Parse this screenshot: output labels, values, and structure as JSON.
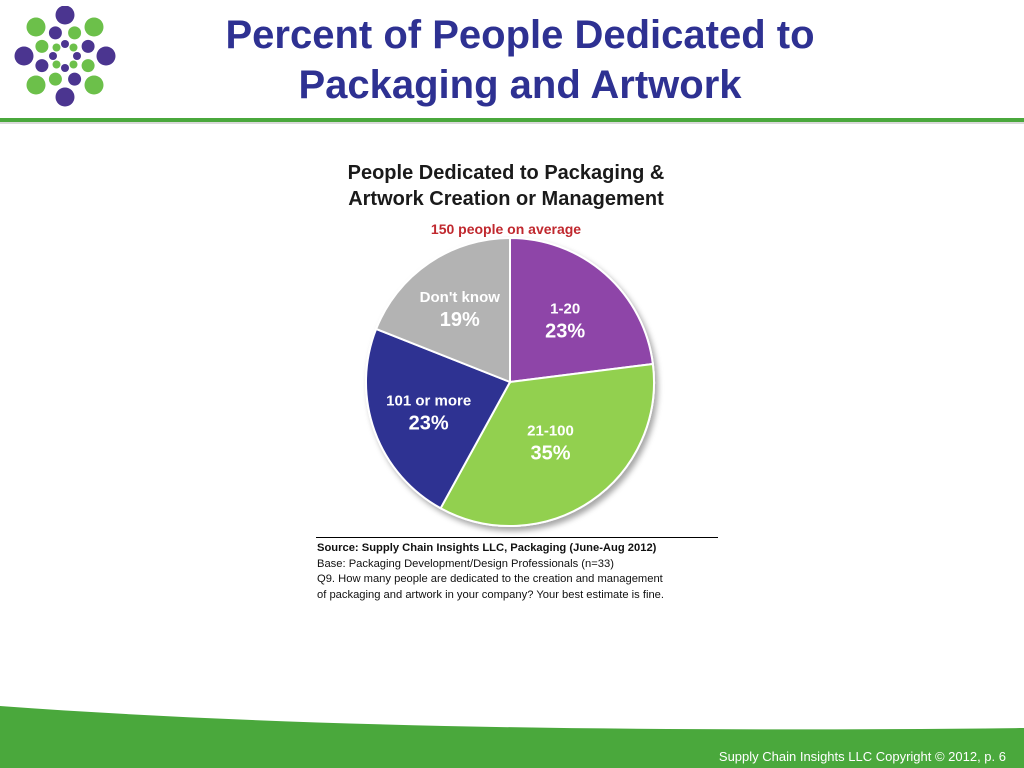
{
  "slide": {
    "title_line1": "Percent of People Dedicated to",
    "title_line2": "Packaging and Artwork",
    "footer": "Supply Chain Insights LLC Copyright © 2012, p. 6"
  },
  "colors": {
    "title": "#2e3192",
    "brand_green": "#4aa83c",
    "logo_purple": "#4b3590",
    "logo_green": "#6cc04a"
  },
  "chart_data": {
    "type": "pie",
    "title_line1": "People Dedicated to Packaging &",
    "title_line2": "Artwork Creation or Management",
    "subtitle": "150 people on average",
    "slices": [
      {
        "label": "1-20",
        "value": 23,
        "display": "23%",
        "color": "#8e44a8"
      },
      {
        "label": "21-100",
        "value": 35,
        "display": "35%",
        "color": "#92d050"
      },
      {
        "label": "101 or more",
        "value": 23,
        "display": "23%",
        "color": "#2e3192"
      },
      {
        "label": "Don't know",
        "value": 19,
        "display": "19%",
        "color": "#b3b3b3"
      }
    ],
    "source": {
      "line1": "Source:  Supply Chain Insights LLC, Packaging (June-Aug 2012)",
      "line2": "Base:  Packaging Development/Design Professionals (n=33)",
      "line3": "Q9. How many people are dedicated to the creation and management",
      "line4": "of packaging and artwork in your company? Your best estimate is fine."
    }
  }
}
